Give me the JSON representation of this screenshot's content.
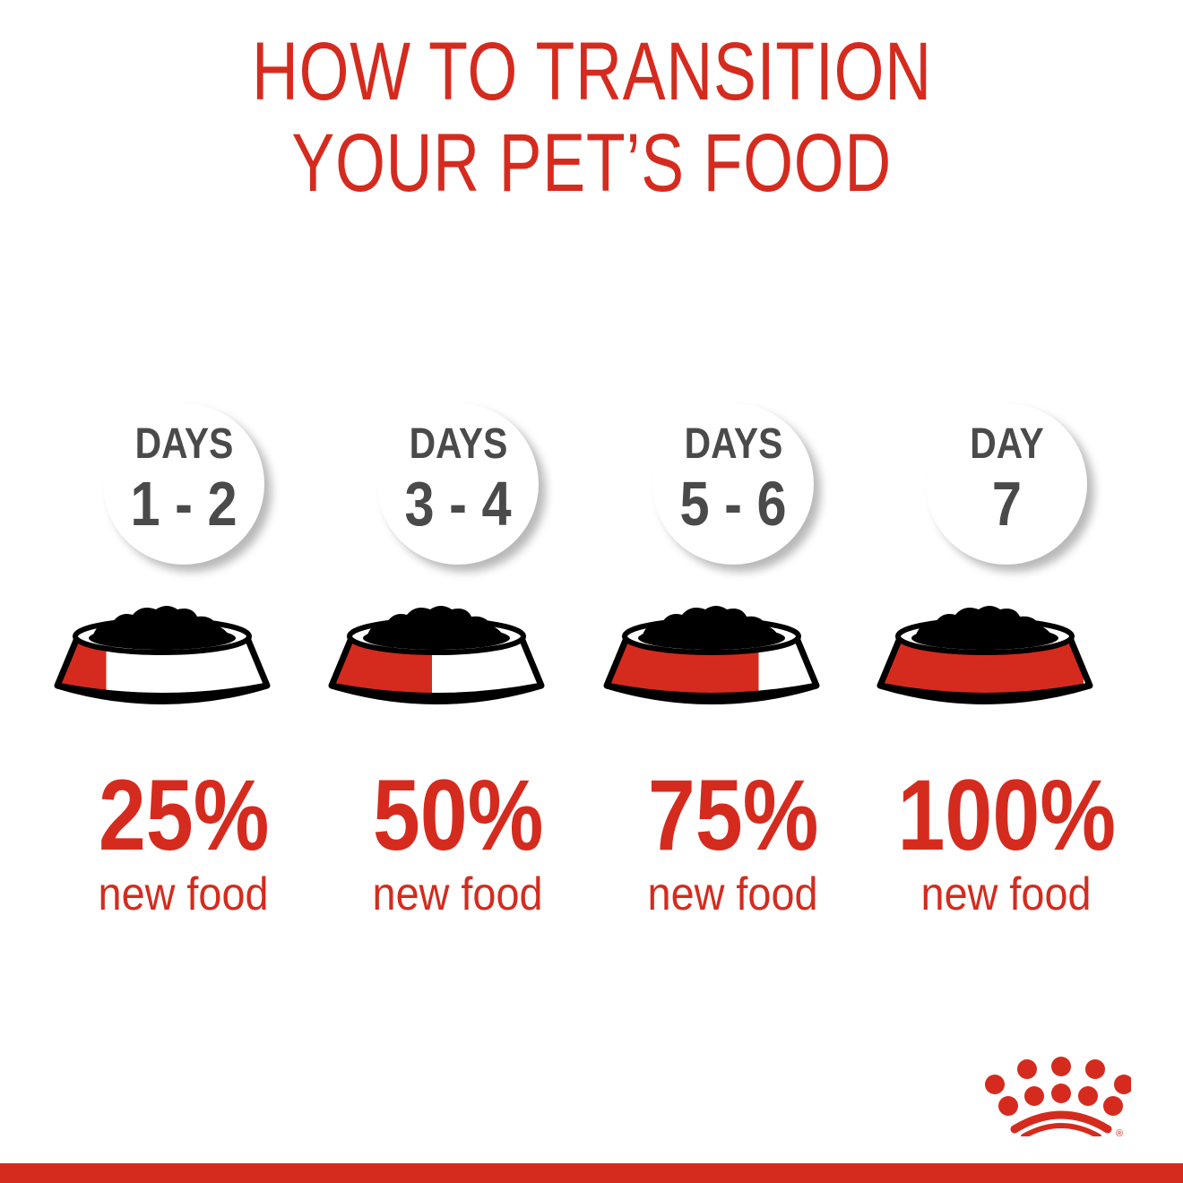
{
  "title": {
    "line1": "HOW TO TRANSITION",
    "line2": "YOUR PET’S FOOD"
  },
  "steps": [
    {
      "label": "DAYS",
      "range": "1 - 2",
      "percent": "25%",
      "fraction": 0.25,
      "caption": "new food"
    },
    {
      "label": "DAYS",
      "range": "3 - 4",
      "percent": "50%",
      "fraction": 0.5,
      "caption": "new food"
    },
    {
      "label": "DAYS",
      "range": "5 - 6",
      "percent": "75%",
      "fraction": 0.75,
      "caption": "new food"
    },
    {
      "label": "DAY",
      "range": "7",
      "percent": "100%",
      "fraction": 1.0,
      "caption": "new food"
    }
  ],
  "logo": {
    "brand_mark": "crown-logo",
    "registered": "®"
  },
  "colors": {
    "brand_red": "#d52b1e",
    "text_gray": "#4a4a4a",
    "bowl_outline": "#000000"
  }
}
